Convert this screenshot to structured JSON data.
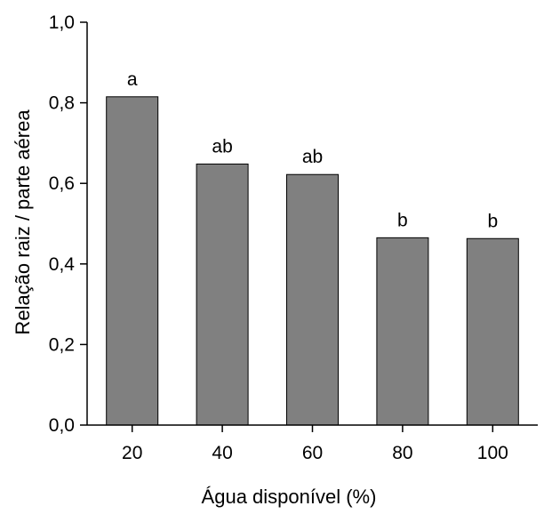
{
  "chart_data": {
    "type": "bar",
    "categories": [
      "20",
      "40",
      "60",
      "80",
      "100"
    ],
    "values": [
      0.815,
      0.648,
      0.622,
      0.465,
      0.463
    ],
    "bar_labels": [
      "a",
      "ab",
      "ab",
      "b",
      "b"
    ],
    "xlabel": "Água disponível (%)",
    "ylabel": "Relação raiz / parte aérea",
    "ylim": [
      0,
      1.0
    ],
    "yticks": [
      "0,0",
      "0,2",
      "0,4",
      "0,6",
      "0,8",
      "1,0"
    ],
    "ytick_values": [
      0,
      0.2,
      0.4,
      0.6,
      0.8,
      1.0
    ],
    "bar_color": "#808080",
    "grid": false
  }
}
